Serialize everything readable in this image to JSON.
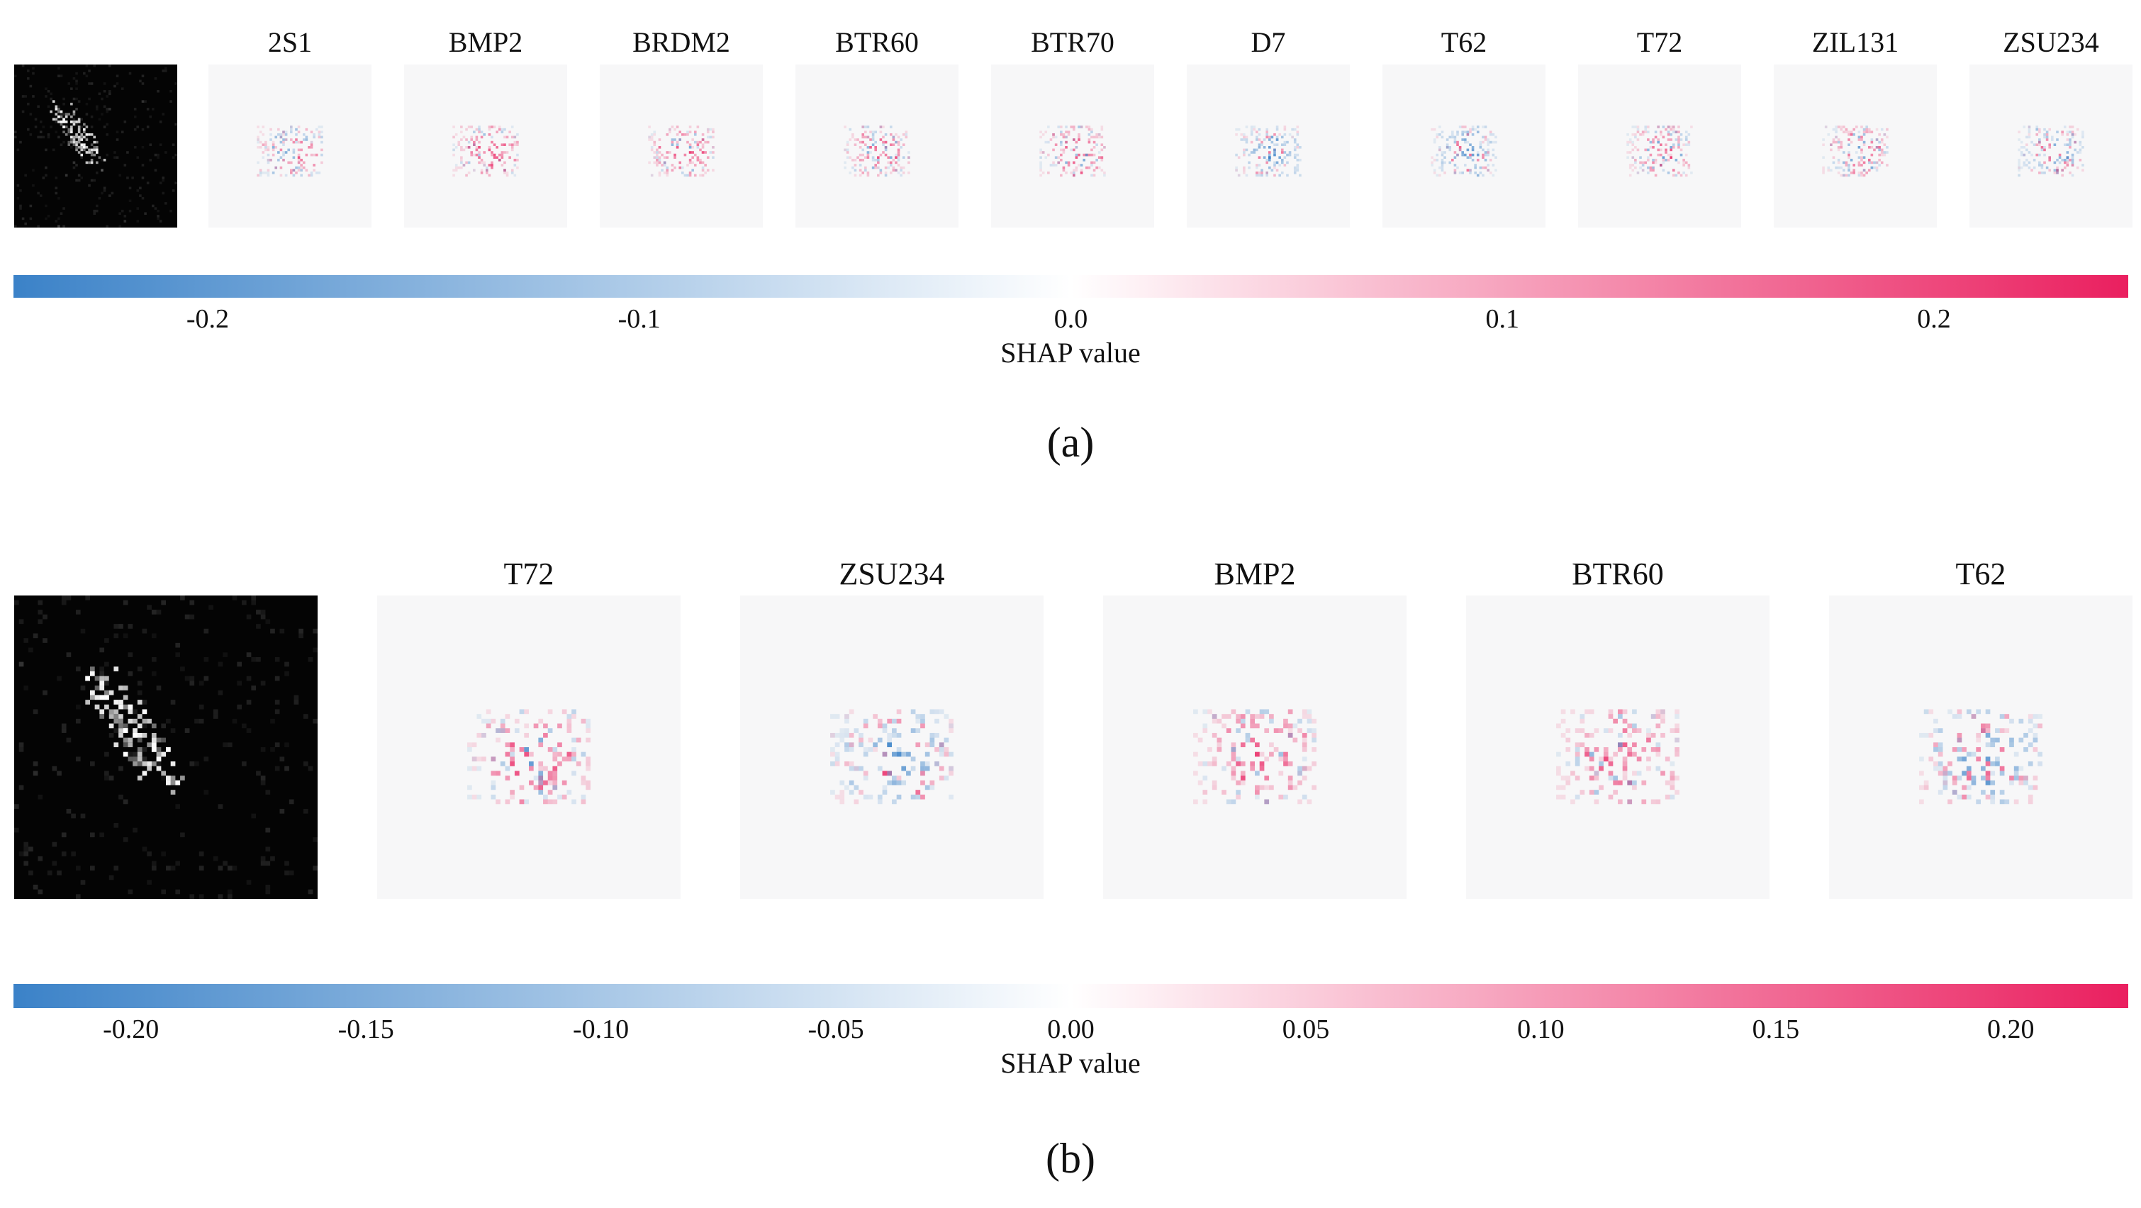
{
  "panel_a": {
    "labels": [
      "2S1",
      "BMP2",
      "BRDM2",
      "BTR60",
      "BTR70",
      "D7",
      "T62",
      "T72",
      "ZIL131",
      "ZSU234"
    ],
    "colorbar": {
      "ticks": [
        "-0.2",
        "-0.1",
        "0.0",
        "0.1",
        "0.2"
      ],
      "tick_values": [
        -0.2,
        -0.1,
        0.0,
        0.1,
        0.2
      ],
      "range": [
        -0.245,
        0.245
      ],
      "title": "SHAP value"
    },
    "caption": "(a)"
  },
  "panel_b": {
    "labels": [
      "T72",
      "ZSU234",
      "BMP2",
      "BTR60",
      "T62"
    ],
    "colorbar": {
      "ticks": [
        "-0.20",
        "-0.15",
        "-0.10",
        "-0.05",
        "0.00",
        "0.05",
        "0.10",
        "0.15",
        "0.20"
      ],
      "tick_values": [
        -0.2,
        -0.15,
        -0.1,
        -0.05,
        0.0,
        0.05,
        0.1,
        0.15,
        0.2
      ],
      "range": [
        -0.225,
        0.225
      ],
      "title": "SHAP value"
    },
    "caption": "(b)"
  },
  "colors": {
    "negative": "#3b82c8",
    "zero": "#ffffff",
    "positive": "#ea1f5f",
    "map_background": "#f7f7f8",
    "input_background": "#040404"
  }
}
